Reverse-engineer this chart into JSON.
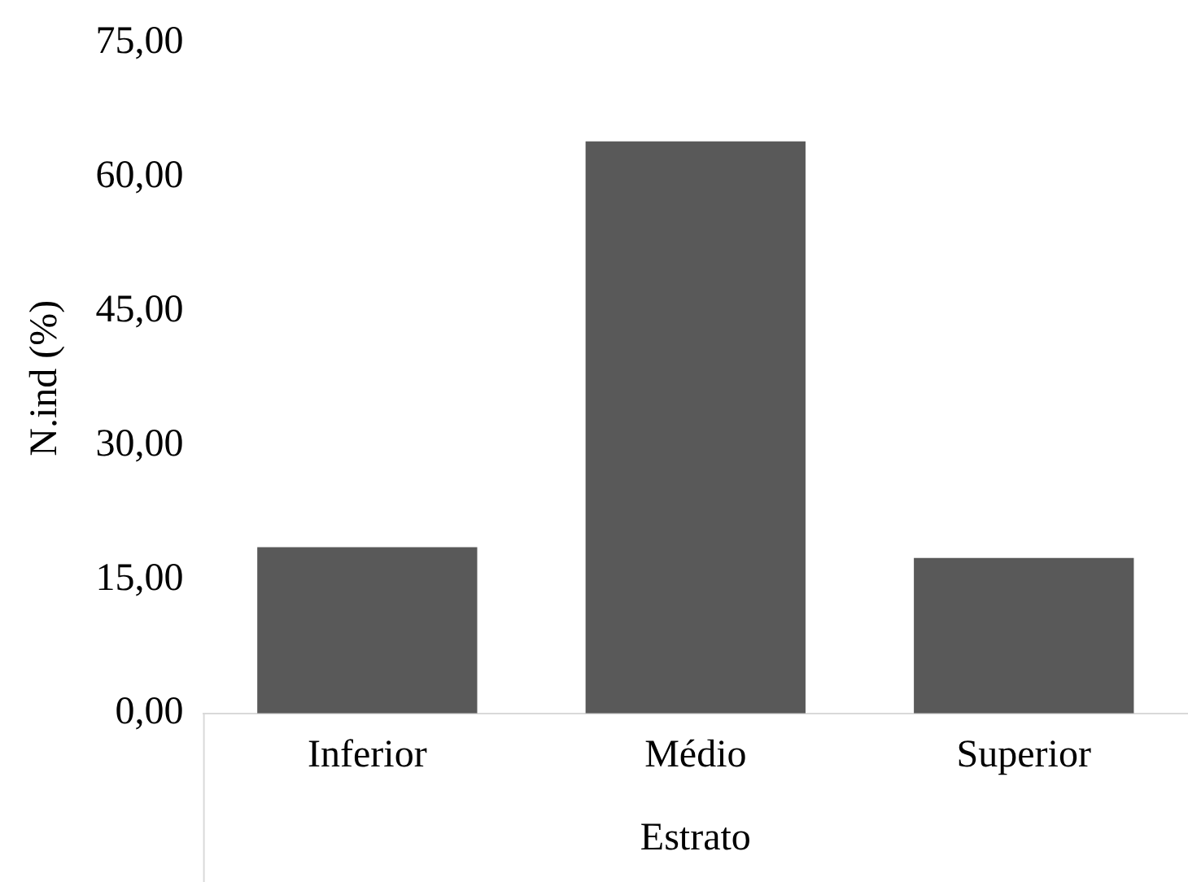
{
  "chart_data": {
    "type": "bar",
    "xlabel": "Estrato",
    "ylabel": "N.ind (%)",
    "categories": [
      "Inferior",
      "Médio",
      "Superior"
    ],
    "values": [
      18.6,
      64.0,
      17.4
    ],
    "color": "#595959",
    "ylim": [
      0,
      75
    ],
    "yticks": [
      {
        "value": 0,
        "label": "0,00"
      },
      {
        "value": 15,
        "label": "15,00"
      },
      {
        "value": 30,
        "label": "30,00"
      },
      {
        "value": 45,
        "label": "45,00"
      },
      {
        "value": 60,
        "label": "60,00"
      },
      {
        "value": 75,
        "label": "75,00"
      }
    ],
    "grid": false,
    "legend": false
  }
}
